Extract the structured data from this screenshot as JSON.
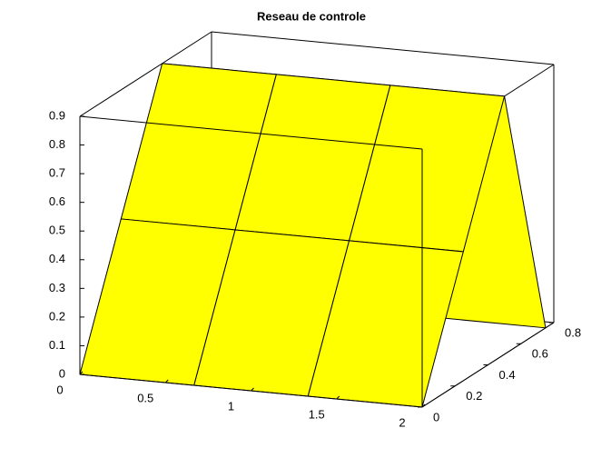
{
  "chart_data": {
    "type": "surface",
    "title": "Reseau de controle",
    "x": [
      0,
      0.667,
      1.333,
      2
    ],
    "y": [
      0,
      0.25,
      0.5,
      0.75
    ],
    "z": [
      [
        0,
        0,
        0,
        0
      ],
      [
        0.45,
        0.45,
        0.45,
        0.45
      ],
      [
        0.9,
        0.9,
        0.9,
        0.9
      ],
      [
        0,
        0,
        0,
        0
      ]
    ],
    "color": "#ffff00",
    "xlim": [
      0,
      2
    ],
    "ylim": [
      0,
      0.8
    ],
    "zlim": [
      0,
      0.9
    ],
    "xticks": [
      0,
      0.5,
      1,
      1.5,
      2
    ],
    "yticks": [
      0,
      0.2,
      0.4,
      0.6,
      0.8
    ],
    "zticks": [
      0,
      0.1,
      0.2,
      0.3,
      0.4,
      0.5,
      0.6,
      0.7,
      0.8,
      0.9
    ]
  }
}
